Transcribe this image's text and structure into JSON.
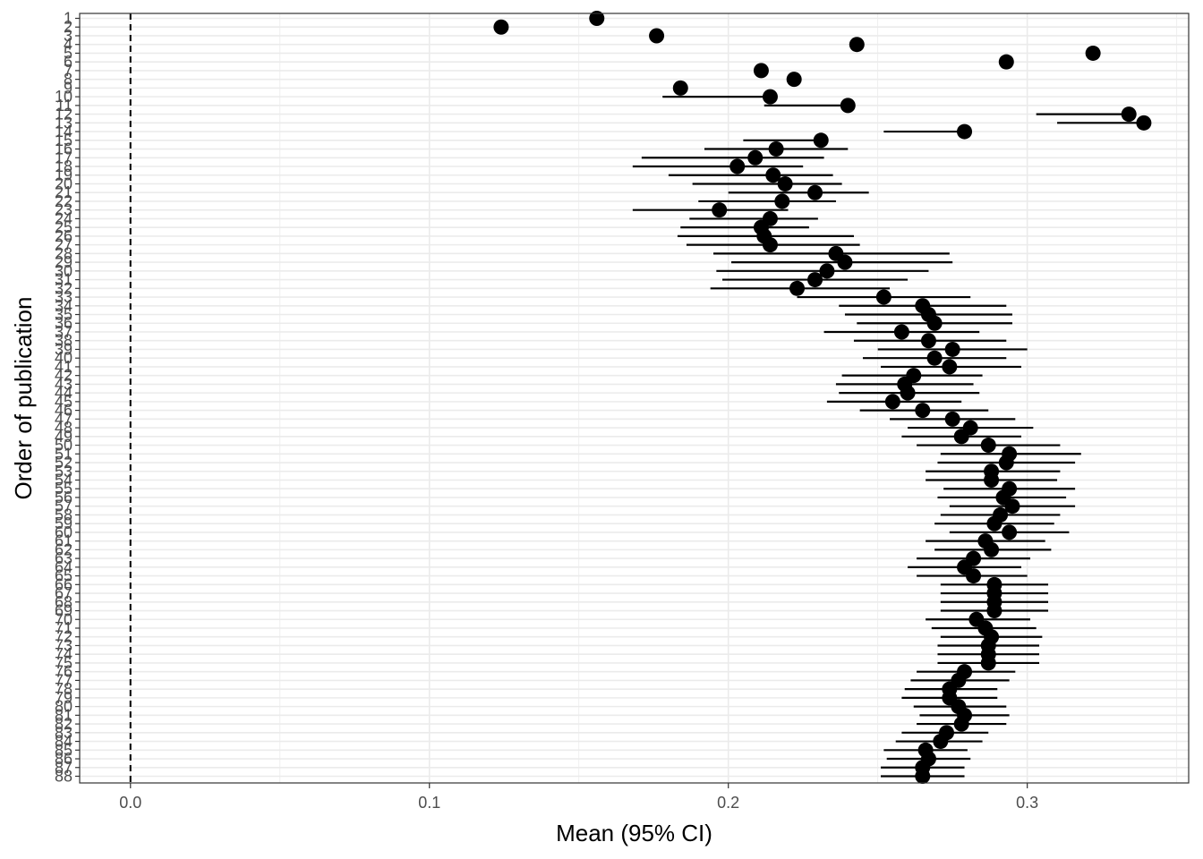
{
  "chart_data": {
    "type": "scatter",
    "subtype": "forest-plot",
    "title": "",
    "xlabel": "Mean (95% CI)",
    "ylabel": "Order of publication",
    "xlim": [
      -0.017,
      0.354
    ],
    "x_ticks": [
      0.0,
      0.1,
      0.2,
      0.3
    ],
    "x_tick_labels": [
      "0.0",
      "0.1",
      "0.2",
      "0.3"
    ],
    "reference_line": {
      "x": 0.0,
      "style": "dashed"
    },
    "grid": true,
    "legend": "none",
    "colors": {
      "point": "#000000",
      "grid": "#ebebeb",
      "border": "#333333",
      "tick_text": "#4d4d4d"
    },
    "y_reversed": true,
    "points": [
      {
        "label": "1",
        "mean": 0.156,
        "lo": 0.156,
        "hi": 0.156
      },
      {
        "label": "2",
        "mean": 0.124,
        "lo": 0.124,
        "hi": 0.124
      },
      {
        "label": "3",
        "mean": 0.176,
        "lo": 0.176,
        "hi": 0.176
      },
      {
        "label": "4",
        "mean": 0.243,
        "lo": 0.243,
        "hi": 0.243
      },
      {
        "label": "5",
        "mean": 0.322,
        "lo": 0.322,
        "hi": 0.322
      },
      {
        "label": "6",
        "mean": 0.293,
        "lo": 0.293,
        "hi": 0.293
      },
      {
        "label": "7",
        "mean": 0.211,
        "lo": 0.211,
        "hi": 0.211
      },
      {
        "label": "8",
        "mean": 0.222,
        "lo": 0.222,
        "hi": 0.222
      },
      {
        "label": "9",
        "mean": 0.184,
        "lo": 0.184,
        "hi": 0.184
      },
      {
        "label": "10",
        "mean": 0.214,
        "lo": 0.178,
        "hi": 0.214
      },
      {
        "label": "11",
        "mean": 0.24,
        "lo": 0.212,
        "hi": 0.24
      },
      {
        "label": "12",
        "mean": 0.334,
        "lo": 0.303,
        "hi": 0.334
      },
      {
        "label": "13",
        "mean": 0.339,
        "lo": 0.31,
        "hi": 0.339
      },
      {
        "label": "14",
        "mean": 0.279,
        "lo": 0.252,
        "hi": 0.279
      },
      {
        "label": "15",
        "mean": 0.231,
        "lo": 0.205,
        "hi": 0.231
      },
      {
        "label": "16",
        "mean": 0.216,
        "lo": 0.192,
        "hi": 0.24
      },
      {
        "label": "17",
        "mean": 0.209,
        "lo": 0.171,
        "hi": 0.232
      },
      {
        "label": "18",
        "mean": 0.203,
        "lo": 0.168,
        "hi": 0.225
      },
      {
        "label": "19",
        "mean": 0.215,
        "lo": 0.18,
        "hi": 0.235
      },
      {
        "label": "20",
        "mean": 0.219,
        "lo": 0.188,
        "hi": 0.238
      },
      {
        "label": "21",
        "mean": 0.229,
        "lo": 0.2,
        "hi": 0.247
      },
      {
        "label": "22",
        "mean": 0.218,
        "lo": 0.19,
        "hi": 0.236
      },
      {
        "label": "23",
        "mean": 0.197,
        "lo": 0.168,
        "hi": 0.22
      },
      {
        "label": "24",
        "mean": 0.214,
        "lo": 0.187,
        "hi": 0.23
      },
      {
        "label": "25",
        "mean": 0.211,
        "lo": 0.184,
        "hi": 0.227
      },
      {
        "label": "26",
        "mean": 0.212,
        "lo": 0.183,
        "hi": 0.242
      },
      {
        "label": "27",
        "mean": 0.214,
        "lo": 0.186,
        "hi": 0.244
      },
      {
        "label": "28",
        "mean": 0.236,
        "lo": 0.195,
        "hi": 0.274
      },
      {
        "label": "29",
        "mean": 0.239,
        "lo": 0.201,
        "hi": 0.275
      },
      {
        "label": "30",
        "mean": 0.233,
        "lo": 0.196,
        "hi": 0.267
      },
      {
        "label": "31",
        "mean": 0.229,
        "lo": 0.198,
        "hi": 0.26
      },
      {
        "label": "32",
        "mean": 0.223,
        "lo": 0.194,
        "hi": 0.254
      },
      {
        "label": "33",
        "mean": 0.252,
        "lo": 0.223,
        "hi": 0.281
      },
      {
        "label": "34",
        "mean": 0.265,
        "lo": 0.237,
        "hi": 0.293
      },
      {
        "label": "35",
        "mean": 0.267,
        "lo": 0.239,
        "hi": 0.295
      },
      {
        "label": "36",
        "mean": 0.269,
        "lo": 0.243,
        "hi": 0.295
      },
      {
        "label": "37",
        "mean": 0.258,
        "lo": 0.232,
        "hi": 0.284
      },
      {
        "label": "38",
        "mean": 0.267,
        "lo": 0.242,
        "hi": 0.293
      },
      {
        "label": "39",
        "mean": 0.275,
        "lo": 0.25,
        "hi": 0.3
      },
      {
        "label": "40",
        "mean": 0.269,
        "lo": 0.245,
        "hi": 0.293
      },
      {
        "label": "41",
        "mean": 0.274,
        "lo": 0.251,
        "hi": 0.298
      },
      {
        "label": "42",
        "mean": 0.262,
        "lo": 0.238,
        "hi": 0.285
      },
      {
        "label": "43",
        "mean": 0.259,
        "lo": 0.236,
        "hi": 0.282
      },
      {
        "label": "44",
        "mean": 0.26,
        "lo": 0.237,
        "hi": 0.284
      },
      {
        "label": "45",
        "mean": 0.255,
        "lo": 0.233,
        "hi": 0.278
      },
      {
        "label": "46",
        "mean": 0.265,
        "lo": 0.244,
        "hi": 0.287
      },
      {
        "label": "47",
        "mean": 0.275,
        "lo": 0.254,
        "hi": 0.296
      },
      {
        "label": "48",
        "mean": 0.281,
        "lo": 0.26,
        "hi": 0.302
      },
      {
        "label": "49",
        "mean": 0.278,
        "lo": 0.258,
        "hi": 0.298
      },
      {
        "label": "50",
        "mean": 0.287,
        "lo": 0.263,
        "hi": 0.311
      },
      {
        "label": "51",
        "mean": 0.294,
        "lo": 0.271,
        "hi": 0.318
      },
      {
        "label": "52",
        "mean": 0.293,
        "lo": 0.27,
        "hi": 0.316
      },
      {
        "label": "53",
        "mean": 0.288,
        "lo": 0.266,
        "hi": 0.311
      },
      {
        "label": "54",
        "mean": 0.288,
        "lo": 0.266,
        "hi": 0.31
      },
      {
        "label": "55",
        "mean": 0.294,
        "lo": 0.272,
        "hi": 0.316
      },
      {
        "label": "56",
        "mean": 0.292,
        "lo": 0.27,
        "hi": 0.313
      },
      {
        "label": "57",
        "mean": 0.295,
        "lo": 0.274,
        "hi": 0.316
      },
      {
        "label": "58",
        "mean": 0.291,
        "lo": 0.271,
        "hi": 0.311
      },
      {
        "label": "59",
        "mean": 0.289,
        "lo": 0.269,
        "hi": 0.309
      },
      {
        "label": "60",
        "mean": 0.294,
        "lo": 0.274,
        "hi": 0.314
      },
      {
        "label": "61",
        "mean": 0.286,
        "lo": 0.266,
        "hi": 0.306
      },
      {
        "label": "62",
        "mean": 0.288,
        "lo": 0.269,
        "hi": 0.308
      },
      {
        "label": "63",
        "mean": 0.282,
        "lo": 0.263,
        "hi": 0.301
      },
      {
        "label": "64",
        "mean": 0.279,
        "lo": 0.26,
        "hi": 0.298
      },
      {
        "label": "65",
        "mean": 0.282,
        "lo": 0.263,
        "hi": 0.3
      },
      {
        "label": "66",
        "mean": 0.289,
        "lo": 0.271,
        "hi": 0.307
      },
      {
        "label": "67",
        "mean": 0.289,
        "lo": 0.271,
        "hi": 0.307
      },
      {
        "label": "68",
        "mean": 0.289,
        "lo": 0.271,
        "hi": 0.307
      },
      {
        "label": "69",
        "mean": 0.289,
        "lo": 0.271,
        "hi": 0.307
      },
      {
        "label": "70",
        "mean": 0.283,
        "lo": 0.266,
        "hi": 0.301
      },
      {
        "label": "71",
        "mean": 0.286,
        "lo": 0.268,
        "hi": 0.303
      },
      {
        "label": "72",
        "mean": 0.288,
        "lo": 0.271,
        "hi": 0.305
      },
      {
        "label": "73",
        "mean": 0.287,
        "lo": 0.27,
        "hi": 0.304
      },
      {
        "label": "74",
        "mean": 0.287,
        "lo": 0.27,
        "hi": 0.304
      },
      {
        "label": "75",
        "mean": 0.287,
        "lo": 0.27,
        "hi": 0.304
      },
      {
        "label": "76",
        "mean": 0.279,
        "lo": 0.263,
        "hi": 0.296
      },
      {
        "label": "77",
        "mean": 0.277,
        "lo": 0.261,
        "hi": 0.294
      },
      {
        "label": "78",
        "mean": 0.274,
        "lo": 0.259,
        "hi": 0.29
      },
      {
        "label": "79",
        "mean": 0.274,
        "lo": 0.258,
        "hi": 0.29
      },
      {
        "label": "80",
        "mean": 0.277,
        "lo": 0.262,
        "hi": 0.293
      },
      {
        "label": "81",
        "mean": 0.279,
        "lo": 0.264,
        "hi": 0.294
      },
      {
        "label": "82",
        "mean": 0.278,
        "lo": 0.263,
        "hi": 0.293
      },
      {
        "label": "83",
        "mean": 0.273,
        "lo": 0.258,
        "hi": 0.287
      },
      {
        "label": "84",
        "mean": 0.271,
        "lo": 0.256,
        "hi": 0.285
      },
      {
        "label": "85",
        "mean": 0.266,
        "lo": 0.252,
        "hi": 0.28
      },
      {
        "label": "86",
        "mean": 0.267,
        "lo": 0.253,
        "hi": 0.281
      },
      {
        "label": "87",
        "mean": 0.265,
        "lo": 0.251,
        "hi": 0.279
      },
      {
        "label": "88",
        "mean": 0.265,
        "lo": 0.251,
        "hi": 0.279
      }
    ]
  }
}
